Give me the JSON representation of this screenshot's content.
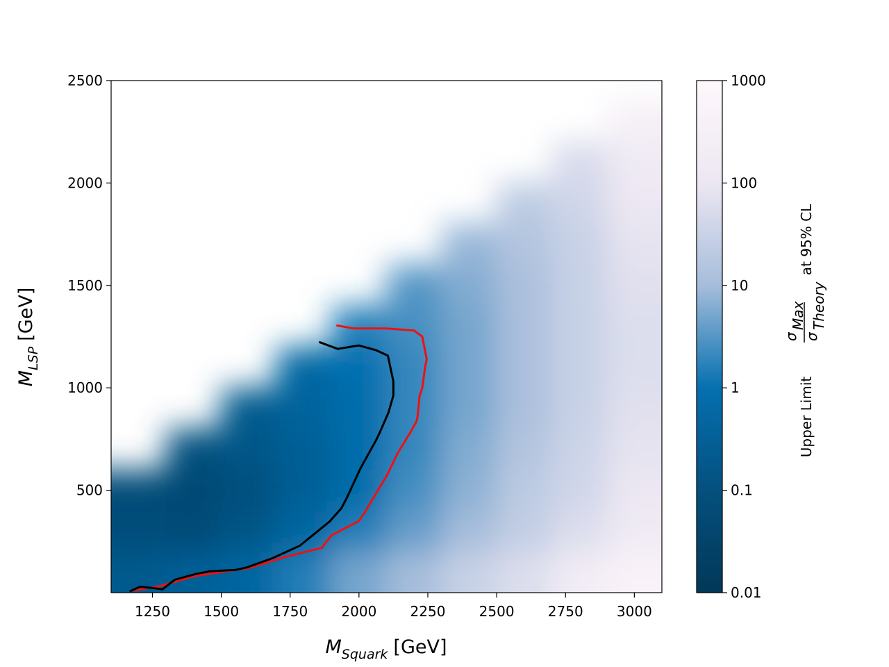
{
  "chart_data": {
    "type": "heatmap",
    "x_label": {
      "symbol": "M",
      "subscript": "Squark",
      "unit": "[GeV]"
    },
    "y_label": {
      "symbol": "M",
      "subscript": "LSP",
      "unit": "[GeV]"
    },
    "xlim": [
      1100,
      3100
    ],
    "xticks": [
      1250,
      1500,
      1750,
      2000,
      2250,
      2500,
      2750,
      3000
    ],
    "ylim": [
      0,
      2500
    ],
    "yticks": [
      500,
      1000,
      1500,
      2000,
      2500
    ],
    "x": [
      1200,
      1400,
      1600,
      1800,
      2000,
      2200,
      2400,
      2600,
      2800,
      3000
    ],
    "y": [
      100,
      300,
      500,
      700,
      900,
      1100,
      1300,
      1500,
      1700,
      1900,
      2100,
      2300
    ],
    "z": [
      [
        0.2,
        0.3,
        0.5,
        1.5,
        5,
        10,
        30,
        60,
        200,
        500
      ],
      [
        0.08,
        0.07,
        0.15,
        0.5,
        1.5,
        4,
        10,
        25,
        60,
        150
      ],
      [
        0.07,
        0.05,
        0.1,
        0.3,
        0.8,
        2.5,
        7,
        20,
        40,
        100
      ],
      [
        null,
        0.1,
        0.15,
        0.3,
        0.8,
        2,
        6,
        15,
        35,
        80
      ],
      [
        null,
        null,
        0.2,
        0.4,
        0.8,
        2,
        5,
        12,
        30,
        70
      ],
      [
        null,
        null,
        null,
        0.5,
        1,
        2,
        5,
        12,
        30,
        60
      ],
      [
        null,
        null,
        null,
        null,
        1.5,
        2.5,
        5,
        12,
        30,
        60
      ],
      [
        null,
        null,
        null,
        null,
        null,
        3,
        6,
        12,
        30,
        70
      ],
      [
        null,
        null,
        null,
        null,
        null,
        null,
        8,
        15,
        30,
        80
      ],
      [
        null,
        null,
        null,
        null,
        null,
        null,
        null,
        20,
        40,
        100
      ],
      [
        null,
        null,
        null,
        null,
        null,
        null,
        null,
        null,
        50,
        150
      ],
      [
        null,
        null,
        null,
        null,
        null,
        null,
        null,
        null,
        null,
        300
      ]
    ],
    "colorbar": {
      "log_scale": true,
      "lim": [
        0.01,
        1000
      ],
      "ticks": [
        0.01,
        0.1,
        1,
        10,
        100,
        1000
      ],
      "colors": [
        "#023858",
        "#04507e",
        "#0570b0",
        "#a6bddb",
        "#ece7f2",
        "#fff7fb"
      ],
      "label": {
        "prefix": "Upper Limit",
        "numerator": "σ",
        "numerator_subscript": "Max",
        "denominator": "σ",
        "denominator_subscript": "Theory",
        "suffix": "at 95% CL"
      }
    },
    "lines": [
      {
        "color": "#ee1111",
        "x": [
          1918,
          1980,
          2100,
          2200,
          2230,
          2246,
          2240,
          2230,
          2220,
          2213,
          2210,
          2190,
          2140,
          2102,
          2060,
          2024,
          2000,
          1900,
          1865,
          1734,
          1600,
          1532,
          1400,
          1280,
          1180
        ],
        "y": [
          1305,
          1290,
          1290,
          1280,
          1250,
          1140,
          1100,
          1000,
          960,
          862,
          840,
          790,
          680,
          574,
          480,
          398,
          350,
          280,
          219,
          175,
          120,
          107,
          80,
          33,
          10
        ]
      },
      {
        "color": "#000000",
        "x": [
          1855,
          1923,
          1999,
          2062,
          2105,
          2125,
          2125,
          2107,
          2074,
          2062,
          2006,
          1956,
          1936,
          1894,
          1785,
          1685,
          1595,
          1552,
          1457,
          1407,
          1331,
          1286,
          1250,
          1205,
          1167
        ],
        "y": [
          1224,
          1190,
          1207,
          1184,
          1157,
          1031,
          963,
          879,
          777,
          744,
          608,
          463,
          412,
          348,
          229,
          168,
          124,
          111,
          104,
          91,
          63,
          16,
          23,
          29,
          6
        ]
      }
    ]
  }
}
